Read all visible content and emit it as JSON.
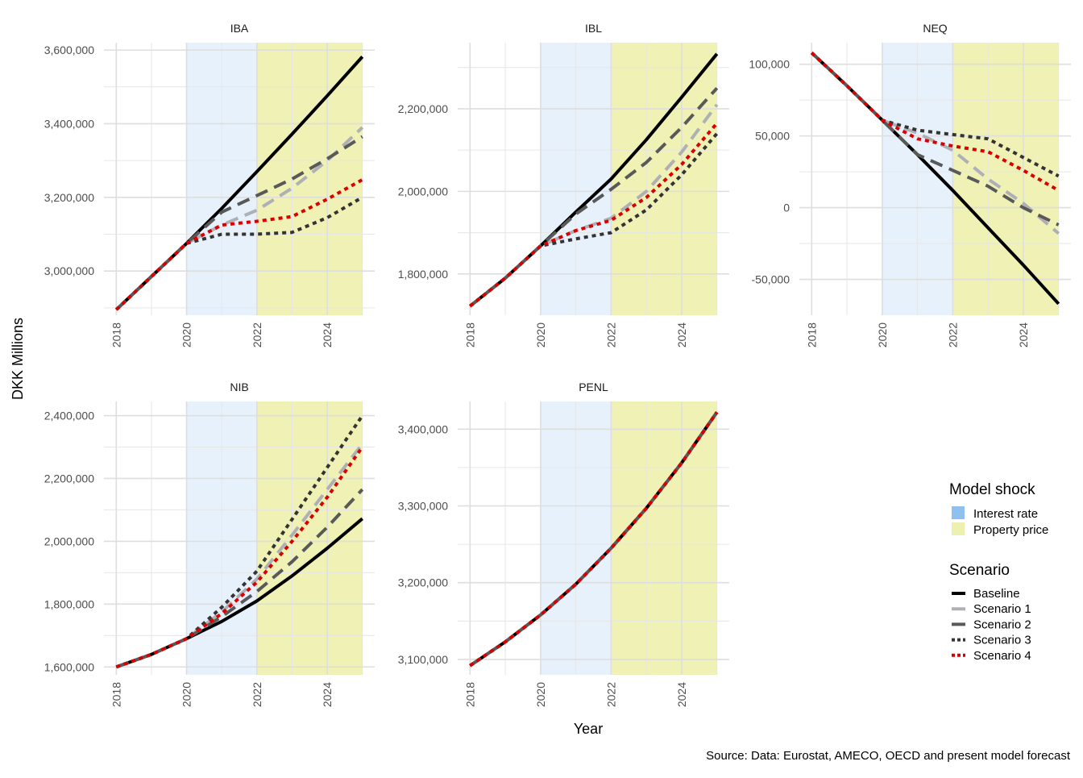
{
  "chart_data": {
    "type": "line",
    "xlabel": "Year",
    "ylabel": "DKK Millions",
    "caption": "Source: Data: Eurostat, AMECO, OECD and present model forecast",
    "grid": true,
    "x_ticks": [
      "2018",
      "2020",
      "2022",
      "2024"
    ],
    "shocks": [
      {
        "name": "Interest rate",
        "from": 2020,
        "to": 2022,
        "color": "#8ec1f0"
      },
      {
        "name": "Property price",
        "from": 2022,
        "to": 2025,
        "color": "#e8eb96"
      }
    ],
    "legend": {
      "position": "right",
      "shock_title": "Model shock",
      "scenario_title": "Scenario"
    },
    "scenarios": [
      {
        "name": "Baseline",
        "color": "#000000",
        "dash": "solid"
      },
      {
        "name": "Scenario 1",
        "color": "#aeb0b5",
        "dash": "longdash"
      },
      {
        "name": "Scenario 2",
        "color": "#595959",
        "dash": "longdash"
      },
      {
        "name": "Scenario 3",
        "color": "#333333",
        "dash": "dotted"
      },
      {
        "name": "Scenario 4",
        "color": "#d90000",
        "dash": "dotted"
      }
    ],
    "x": [
      2018,
      2019,
      2020,
      2021,
      2022,
      2023,
      2024,
      2025
    ],
    "panels": [
      {
        "title": "IBA",
        "ylim": [
          2880000,
          3620000
        ],
        "y_ticks": [
          3000000,
          3200000,
          3400000,
          3600000
        ],
        "y_tick_labels": [
          "3,000,000",
          "3,200,000",
          "3,400,000",
          "3,600,000"
        ],
        "series": [
          {
            "name": "Baseline",
            "values": [
              2895000,
              2985000,
              3075000,
              3170000,
              3270000,
              3372000,
              3476000,
              3582000
            ]
          },
          {
            "name": "Scenario 1",
            "values": [
              2895000,
              2985000,
              3075000,
              3125000,
              3165000,
              3225000,
              3300000,
              3390000
            ]
          },
          {
            "name": "Scenario 2",
            "values": [
              2895000,
              2985000,
              3075000,
              3160000,
              3205000,
              3250000,
              3305000,
              3365000
            ]
          },
          {
            "name": "Scenario 3",
            "values": [
              2895000,
              2985000,
              3075000,
              3100000,
              3100000,
              3105000,
              3145000,
              3200000
            ]
          },
          {
            "name": "Scenario 4",
            "values": [
              2895000,
              2985000,
              3075000,
              3125000,
              3135000,
              3148000,
              3195000,
              3248000
            ]
          }
        ]
      },
      {
        "title": "IBL",
        "ylim": [
          1700000,
          2360000
        ],
        "y_ticks": [
          1800000,
          2000000,
          2200000
        ],
        "y_tick_labels": [
          "1,800,000",
          "2,000,000",
          "2,200,000"
        ],
        "series": [
          {
            "name": "Baseline",
            "values": [
              1722000,
              1790000,
              1868000,
              1950000,
              2030000,
              2125000,
              2228000,
              2333000
            ]
          },
          {
            "name": "Scenario 1",
            "values": [
              1722000,
              1790000,
              1868000,
              1905000,
              1935000,
              2000000,
              2095000,
              2210000
            ]
          },
          {
            "name": "Scenario 2",
            "values": [
              1722000,
              1790000,
              1868000,
              1945000,
              2005000,
              2070000,
              2155000,
              2250000
            ]
          },
          {
            "name": "Scenario 3",
            "values": [
              1722000,
              1790000,
              1868000,
              1885000,
              1900000,
              1955000,
              2040000,
              2140000
            ]
          },
          {
            "name": "Scenario 4",
            "values": [
              1722000,
              1790000,
              1868000,
              1905000,
              1930000,
              1985000,
              2065000,
              2165000
            ]
          }
        ]
      },
      {
        "title": "NEQ",
        "ylim": [
          -75000,
          115000
        ],
        "y_ticks": [
          -50000,
          0,
          50000,
          100000
        ],
        "y_tick_labels": [
          "-50,000",
          "0",
          "50,000",
          "100,000"
        ],
        "series": [
          {
            "name": "Baseline",
            "values": [
              108000,
              85000,
              61000,
              37000,
              12000,
              -14000,
              -40000,
              -67000
            ]
          },
          {
            "name": "Scenario 1",
            "values": [
              108000,
              85000,
              61000,
              52000,
              40000,
              20000,
              3000,
              -18000
            ]
          },
          {
            "name": "Scenario 2",
            "values": [
              108000,
              85000,
              61000,
              37000,
              26000,
              15000,
              0,
              -12000
            ]
          },
          {
            "name": "Scenario 3",
            "values": [
              108000,
              85000,
              61000,
              54000,
              51000,
              48000,
              35000,
              22000
            ]
          },
          {
            "name": "Scenario 4",
            "values": [
              108000,
              85000,
              61000,
              48000,
              43000,
              39000,
              26000,
              12000
            ]
          }
        ]
      },
      {
        "title": "NIB",
        "ylim": [
          1575000,
          2445000
        ],
        "y_ticks": [
          1600000,
          1800000,
          2000000,
          2200000,
          2400000
        ],
        "y_tick_labels": [
          "1,600,000",
          "1,800,000",
          "2,000,000",
          "2,200,000",
          "2,400,000"
        ],
        "series": [
          {
            "name": "Baseline",
            "values": [
              1600000,
              1640000,
              1690000,
              1745000,
              1810000,
              1890000,
              1978000,
              2072000
            ]
          },
          {
            "name": "Scenario 1",
            "values": [
              1600000,
              1640000,
              1690000,
              1775000,
              1880000,
              2020000,
              2165000,
              2310000
            ]
          },
          {
            "name": "Scenario 2",
            "values": [
              1600000,
              1640000,
              1690000,
              1760000,
              1840000,
              1935000,
              2045000,
              2165000
            ]
          },
          {
            "name": "Scenario 3",
            "values": [
              1600000,
              1640000,
              1690000,
              1790000,
              1905000,
              2070000,
              2235000,
              2400000
            ]
          },
          {
            "name": "Scenario 4",
            "values": [
              1600000,
              1640000,
              1690000,
              1770000,
              1870000,
              2000000,
              2140000,
              2300000
            ]
          }
        ]
      },
      {
        "title": "PENL",
        "ylim": [
          3080000,
          3436000
        ],
        "y_ticks": [
          3100000,
          3200000,
          3300000,
          3400000
        ],
        "y_tick_labels": [
          "3,100,000",
          "3,200,000",
          "3,300,000",
          "3,400,000"
        ],
        "series": [
          {
            "name": "Baseline",
            "values": [
              3092000,
              3123000,
              3158000,
              3198000,
              3245000,
              3297000,
              3356000,
              3422000
            ]
          },
          {
            "name": "Scenario 1",
            "values": [
              3092000,
              3123000,
              3158000,
              3198000,
              3245000,
              3297000,
              3356000,
              3422000
            ]
          },
          {
            "name": "Scenario 2",
            "values": [
              3092000,
              3123000,
              3158000,
              3198000,
              3245000,
              3297000,
              3356000,
              3422000
            ]
          },
          {
            "name": "Scenario 3",
            "values": [
              3092000,
              3123000,
              3158000,
              3198000,
              3245000,
              3297000,
              3356000,
              3422000
            ]
          },
          {
            "name": "Scenario 4",
            "values": [
              3092000,
              3123000,
              3158000,
              3198000,
              3245000,
              3297000,
              3356000,
              3422000
            ]
          }
        ]
      }
    ]
  }
}
